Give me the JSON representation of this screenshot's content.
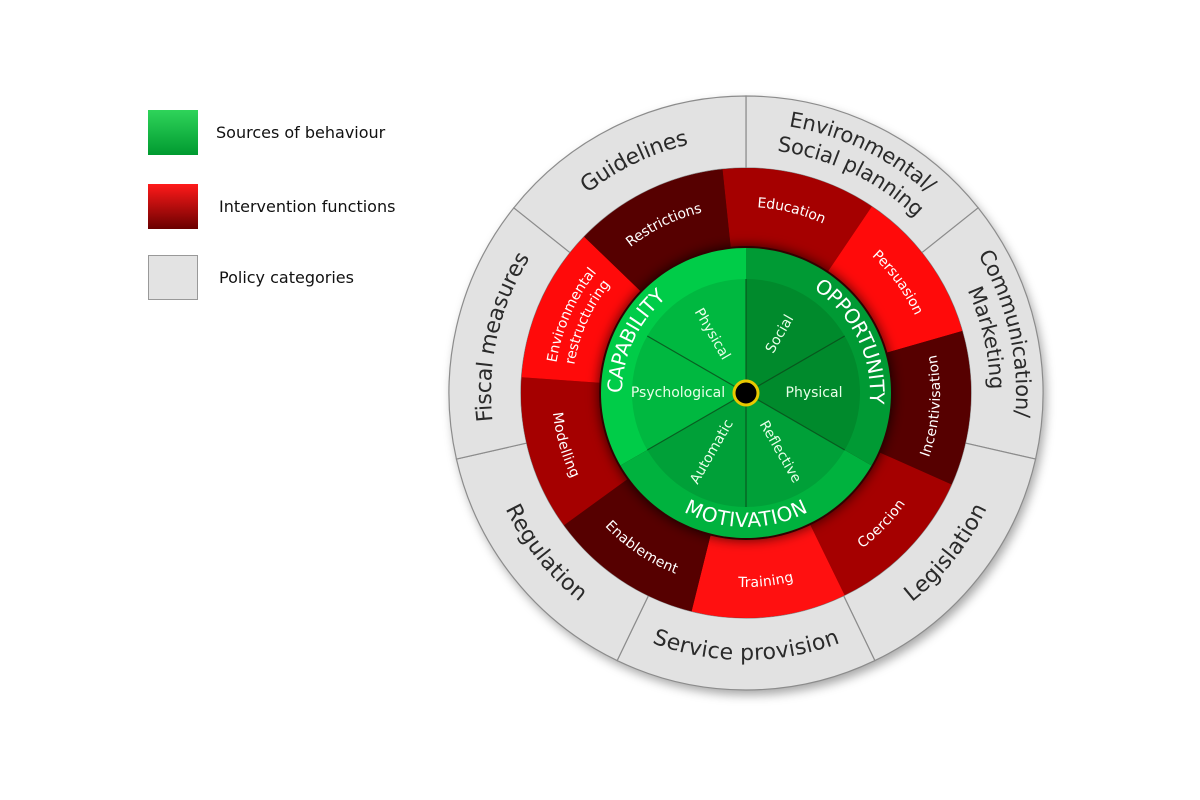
{
  "legend": [
    {
      "label": "Sources of behaviour",
      "color_top": "#2fd45a",
      "color_bottom": "#009a30"
    },
    {
      "label": "Intervention functions",
      "color_top": "#ff1a1a",
      "color_bottom": "#6a0000"
    },
    {
      "label": "Policy categories",
      "color_top": "#e6e6e6",
      "color_bottom": "#dcdcdc"
    }
  ],
  "policy_categories": [
    {
      "lines": [
        "Environmental/",
        "Social planning"
      ]
    },
    {
      "lines": [
        "Communication/",
        "Marketing"
      ]
    },
    {
      "lines": [
        "Legislation"
      ]
    },
    {
      "lines": [
        "Service provision"
      ]
    },
    {
      "lines": [
        "Regulation"
      ]
    },
    {
      "lines": [
        "Fiscal measures"
      ]
    },
    {
      "lines": [
        "Guidelines"
      ]
    }
  ],
  "intervention_functions": [
    {
      "lines": [
        "Education"
      ],
      "color": "#a50000"
    },
    {
      "lines": [
        "Persuasion"
      ],
      "color": "#ff0a0a"
    },
    {
      "lines": [
        "Incentivisation"
      ],
      "color": "#560000"
    },
    {
      "lines": [
        "Coercion"
      ],
      "color": "#a50000"
    },
    {
      "lines": [
        "Training"
      ],
      "color": "#ff1010"
    },
    {
      "lines": [
        "Enablement"
      ],
      "color": "#560000"
    },
    {
      "lines": [
        "Modelling"
      ],
      "color": "#a50000"
    },
    {
      "lines": [
        "Environmental",
        "restructuring"
      ],
      "color": "#ff0a0a"
    },
    {
      "lines": [
        "Restrictions"
      ],
      "color": "#560000"
    }
  ],
  "sources": [
    {
      "label": "OPPORTUNITY",
      "color": "#009a34",
      "inner_color": "#008a2c",
      "components": [
        "Social",
        "Physical"
      ]
    },
    {
      "label": "MOTIVATION",
      "color": "#00b23e",
      "inner_color": "#00a038",
      "components": [
        "Reflective",
        "Automatic"
      ]
    },
    {
      "label": "CAPABILITY",
      "color": "#00cc48",
      "inner_color": "#00b840",
      "components": [
        "Psychological",
        "Physical"
      ]
    }
  ],
  "colors": {
    "policy_fill": "#e2e2e2",
    "policy_stroke": "#8c8c8c",
    "hub": "#000000",
    "hub_ring": "#e8c800"
  }
}
